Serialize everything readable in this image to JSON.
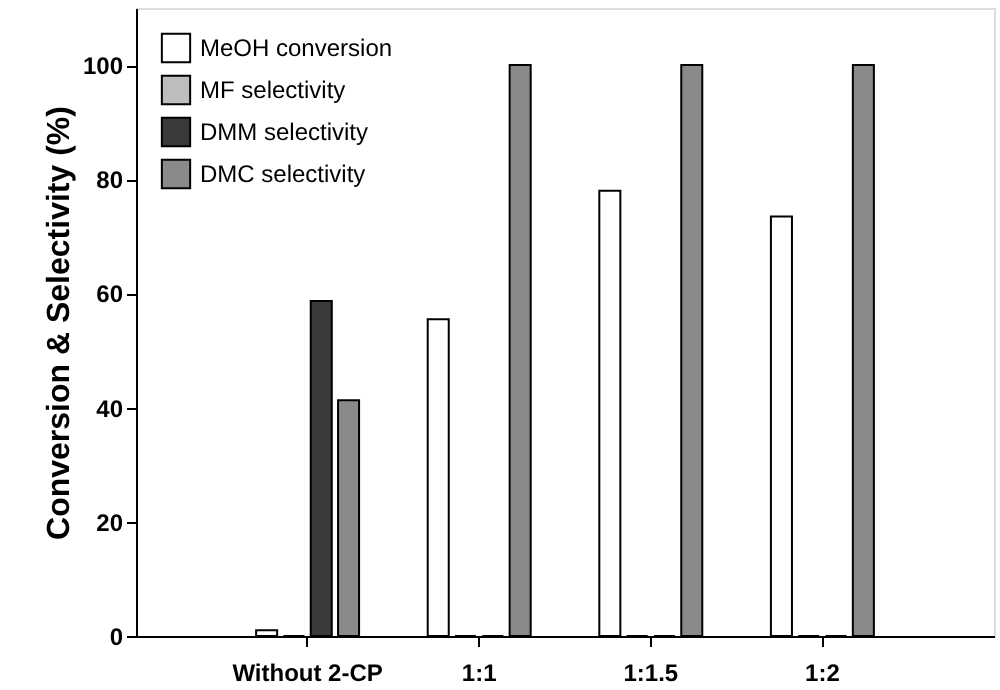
{
  "chart_data": {
    "type": "bar",
    "ylabel": "Conversion & Selectivity (%)",
    "categories": [
      "Without 2-CP",
      "1:1",
      "1:1.5",
      "1:2"
    ],
    "series": [
      {
        "name": "MeOH conversion",
        "color": "#ffffff",
        "values": [
          1,
          55.5,
          78,
          73.5
        ]
      },
      {
        "name": "MF selectivity",
        "color": "#bdbdbd",
        "values": [
          0,
          0,
          0,
          0
        ]
      },
      {
        "name": "DMM selectivity",
        "color": "#3a3a3a",
        "values": [
          58.7,
          0,
          0,
          0
        ]
      },
      {
        "name": "DMC selectivity",
        "color": "#8a8a8a",
        "values": [
          41.3,
          100,
          100,
          100
        ]
      }
    ],
    "ylim": [
      0,
      110
    ],
    "yticks": [
      0,
      20,
      40,
      60,
      80,
      100
    ],
    "grid": false,
    "legend": "top left"
  }
}
